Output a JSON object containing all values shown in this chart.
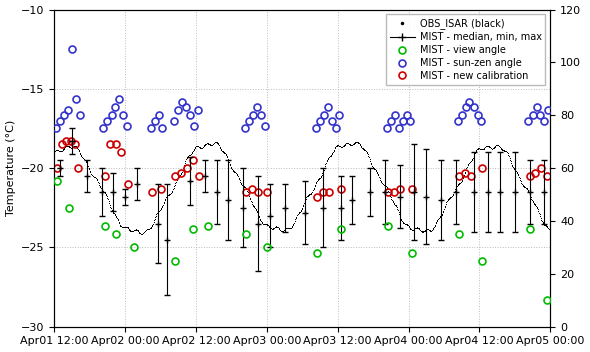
{
  "ylabel_left": "Temperature (°C)",
  "ylim_left": [
    -30,
    -10
  ],
  "ylim_right": [
    0,
    120
  ],
  "yticks_left": [
    -30,
    -25,
    -20,
    -15,
    -10
  ],
  "yticks_right": [
    0,
    20,
    40,
    60,
    80,
    100,
    120
  ],
  "bg_color": "#ffffff",
  "grid_color": "#bbbbbb",
  "legend_entries": [
    "OBS_ISAR (black)",
    "MIST - median, min, max",
    "MIST - view angle",
    "MIST - sun-zen angle",
    "MIST - new calibration"
  ],
  "view_angle_color": "#00bb00",
  "sun_zen_color": "#3333cc",
  "new_cal_color": "#cc0000",
  "xlim_hours": [
    12.0,
    96.0
  ],
  "xtick_hours": [
    12.0,
    24.0,
    36.0,
    48.0,
    60.0,
    72.0,
    84.0,
    96.0
  ],
  "xtick_labels": [
    "Apr01 12:00",
    "Apr02 00:00",
    "Apr02 12:00",
    "Apr03 00:00",
    "Apr03 12:00",
    "Apr04 00:00",
    "Apr04 12:00",
    "Apr05 00:00"
  ],
  "obs_isar_x_hours": [
    12.0,
    12.1,
    12.2,
    12.3,
    12.4,
    12.5,
    12.6,
    12.7,
    12.8,
    12.9,
    13.0,
    13.1,
    13.2,
    13.3,
    13.4,
    13.5,
    13.6,
    13.7,
    13.8,
    13.9,
    14.0,
    14.1,
    14.2,
    14.3,
    14.4,
    14.5,
    14.6,
    14.7,
    14.8,
    14.9,
    15.0,
    15.1,
    15.2,
    15.3,
    15.4,
    15.5,
    15.6,
    15.7,
    15.8,
    15.9,
    16.0,
    16.1,
    16.2,
    16.3,
    16.4,
    16.5,
    16.6,
    16.7,
    16.8,
    16.9,
    17.0,
    17.1,
    17.2,
    17.3,
    17.4,
    17.5,
    17.6,
    17.7,
    17.8,
    17.9,
    18.0,
    18.1,
    18.2,
    18.3,
    18.4,
    18.5,
    18.6,
    18.7,
    18.8,
    18.9,
    19.0,
    19.1,
    19.2,
    19.3,
    19.4,
    19.5,
    19.6,
    19.7,
    19.8,
    19.9,
    20.0,
    20.1,
    20.2,
    20.3,
    20.4,
    20.5,
    20.6,
    20.7,
    20.8,
    20.9,
    21.0,
    21.1,
    21.2,
    21.3,
    21.4,
    21.5,
    21.6,
    21.7,
    21.8,
    21.9,
    22.0,
    22.1,
    22.2,
    22.3,
    22.4,
    22.5,
    22.6,
    22.7,
    22.8,
    22.9,
    23.0,
    23.1,
    23.2,
    23.3,
    23.4,
    23.5,
    23.6,
    23.7,
    23.8,
    23.9,
    24.0,
    24.1,
    24.2,
    24.3,
    24.4,
    24.5,
    24.6,
    24.7,
    24.8,
    24.9,
    25.0,
    25.1,
    25.2,
    25.3,
    25.4,
    25.5,
    25.6,
    25.7,
    25.8,
    25.9,
    26.0,
    26.1,
    26.2,
    26.3,
    26.4,
    26.5,
    26.6,
    26.7,
    26.8,
    26.9,
    27.0,
    27.1,
    27.2,
    27.3,
    27.4,
    27.5,
    27.6,
    27.7,
    27.8,
    27.9,
    28.0,
    28.1,
    28.2,
    28.3,
    28.4,
    28.5,
    28.6,
    28.7,
    28.8,
    28.9,
    29.0,
    29.1,
    29.2,
    29.3,
    29.4,
    29.5,
    29.6,
    29.7,
    29.8,
    29.9,
    30.0,
    30.1,
    30.2,
    30.3,
    30.4,
    30.5,
    30.6,
    30.7,
    30.8,
    30.9,
    31.0,
    31.1,
    31.2,
    31.3,
    31.4,
    31.5,
    31.6,
    31.7,
    31.8,
    31.9,
    32.0,
    32.1,
    32.2,
    32.3,
    32.4,
    32.5,
    32.6,
    32.7,
    32.8,
    32.9,
    33.0,
    33.1,
    33.2,
    33.3,
    33.4,
    33.5,
    33.6,
    33.7,
    33.8,
    33.9,
    34.0,
    34.1,
    34.2,
    34.3,
    34.4,
    34.5,
    34.6,
    34.7,
    34.8,
    34.9,
    35.0,
    35.1,
    35.2,
    35.3,
    35.4,
    35.5,
    35.6,
    35.7,
    35.8,
    35.9,
    36.0,
    36.1,
    36.2,
    36.3,
    36.4,
    36.5,
    36.6,
    36.7,
    36.8,
    36.9,
    37.0,
    37.1,
    37.2,
    37.3,
    37.4,
    37.5,
    37.6,
    37.7,
    37.8,
    37.9,
    38.0,
    38.1,
    38.2,
    38.3,
    38.4,
    38.5,
    38.6,
    38.7,
    38.8,
    38.9,
    39.0,
    39.1,
    39.2,
    39.3,
    39.4,
    39.5,
    39.6,
    39.7,
    39.8,
    39.9,
    40.0,
    40.1,
    40.2,
    40.3,
    40.4,
    40.5,
    40.6,
    40.7,
    40.8,
    40.9,
    41.0,
    41.1,
    41.2,
    41.3,
    41.4,
    41.5,
    41.6,
    41.7,
    41.8,
    41.9,
    42.0,
    42.1,
    42.2,
    42.3,
    42.4,
    42.5,
    42.6,
    42.7,
    42.8,
    42.9,
    43.0,
    43.1,
    43.2,
    43.3,
    43.4,
    43.5,
    43.6,
    43.7,
    43.8,
    43.9,
    44.0,
    44.1,
    44.2,
    44.3,
    44.4,
    44.5,
    44.6,
    44.7,
    44.8,
    44.9,
    45.0,
    45.1,
    45.2,
    45.3,
    45.4,
    45.5,
    45.6,
    45.7,
    45.8,
    45.9,
    46.0,
    46.1,
    46.2,
    46.3,
    46.4,
    46.5,
    46.6,
    46.7,
    46.8,
    46.9,
    47.0,
    47.1,
    47.2,
    47.3,
    47.4,
    47.5,
    47.6,
    47.7,
    47.8,
    47.9,
    48.0,
    48.1,
    48.2,
    48.3,
    48.4,
    48.5,
    48.6,
    48.7,
    48.8,
    48.9,
    49.0,
    49.1,
    49.2,
    49.3,
    49.4,
    49.5,
    49.6,
    49.7,
    49.8,
    49.9,
    50.0,
    50.1,
    50.2,
    50.3,
    50.4,
    50.5,
    50.6,
    50.7,
    50.8,
    50.9,
    51.0,
    51.1,
    51.2,
    51.3,
    51.4,
    51.5,
    51.6,
    51.7,
    51.8,
    51.9,
    52.0,
    52.1,
    52.2,
    52.3,
    52.4,
    52.5,
    52.6,
    52.7,
    52.8,
    52.9,
    53.0,
    53.1,
    53.2,
    53.3,
    53.4,
    53.5,
    53.6,
    53.7,
    53.8,
    53.9,
    54.0,
    54.1,
    54.2,
    54.3,
    54.4,
    54.5,
    54.6,
    54.7,
    54.8,
    54.9,
    55.0,
    55.1,
    55.2,
    55.3,
    55.4,
    55.5,
    55.6,
    55.7,
    55.8,
    55.9,
    56.0,
    56.1,
    56.2,
    56.3,
    56.4,
    56.5,
    56.6,
    56.7,
    56.8,
    56.9,
    57.0,
    57.1,
    57.2,
    57.3,
    57.4,
    57.5,
    57.6,
    57.7,
    57.8,
    57.9,
    58.0,
    58.1,
    58.2,
    58.3,
    58.4,
    58.5,
    58.6,
    58.7,
    58.8,
    58.9,
    59.0,
    59.1,
    59.2,
    59.3,
    59.4,
    59.5,
    59.6,
    59.7,
    59.8,
    59.9,
    60.0,
    60.1,
    60.2,
    60.3,
    60.4,
    60.5,
    60.6,
    60.7,
    60.8,
    60.9,
    61.0,
    61.1,
    61.2,
    61.3,
    61.4,
    61.5,
    61.6,
    61.7,
    61.8,
    61.9,
    62.0,
    62.1,
    62.2,
    62.3,
    62.4,
    62.5,
    62.6,
    62.7,
    62.8,
    62.9,
    63.0,
    63.1,
    63.2,
    63.3,
    63.4,
    63.5,
    63.6,
    63.7,
    63.8,
    63.9,
    64.0,
    64.1,
    64.2,
    64.3,
    64.4,
    64.5,
    64.6,
    64.7,
    64.8,
    64.9,
    65.0,
    65.1,
    65.2,
    65.3,
    65.4,
    65.5,
    65.6,
    65.7,
    65.8,
    65.9,
    66.0,
    66.1,
    66.2,
    66.3,
    66.4,
    66.5,
    66.6,
    66.7,
    66.8,
    66.9,
    67.0,
    67.1,
    67.2,
    67.3,
    67.4,
    67.5,
    67.6,
    67.7,
    67.8,
    67.9,
    68.0,
    68.1,
    68.2,
    68.3,
    68.4,
    68.5,
    68.6,
    68.7,
    68.8,
    68.9,
    69.0,
    69.1,
    69.2,
    69.3,
    69.4,
    69.5,
    69.6,
    69.7,
    69.8,
    69.9,
    70.0,
    70.1,
    70.2,
    70.3,
    70.4,
    70.5,
    70.6,
    70.7,
    70.8,
    70.9,
    71.0,
    71.1,
    71.2,
    71.3,
    71.4,
    71.5,
    71.6,
    71.7,
    71.8,
    71.9,
    72.0,
    72.1,
    72.2,
    72.3,
    72.4,
    72.5,
    72.6,
    72.7,
    72.8,
    72.9,
    73.0,
    73.1,
    73.2,
    73.3,
    73.4,
    73.5,
    73.6,
    73.7,
    73.8,
    73.9,
    74.0,
    74.1,
    74.2,
    74.3,
    74.4,
    74.5,
    74.6,
    74.7,
    74.8,
    74.9,
    75.0,
    75.1,
    75.2,
    75.3,
    75.4,
    75.5,
    75.6,
    75.7,
    75.8,
    75.9,
    76.0,
    76.1,
    76.2,
    76.3,
    76.4,
    76.5,
    76.6,
    76.7,
    76.8,
    76.9,
    77.0,
    77.1,
    77.2,
    77.3,
    77.4,
    77.5,
    77.6,
    77.7,
    77.8,
    77.9,
    78.0,
    78.1,
    78.2,
    78.3,
    78.4,
    78.5,
    78.6,
    78.7,
    78.8,
    78.9,
    79.0,
    79.1,
    79.2,
    79.3,
    79.4,
    79.5,
    79.6,
    79.7,
    79.8,
    79.9,
    80.0,
    80.1,
    80.2,
    80.3,
    80.4,
    80.5,
    80.6,
    80.7,
    80.8,
    80.9,
    81.0,
    81.1,
    81.2,
    81.3,
    81.4,
    81.5,
    81.6,
    81.7,
    81.8,
    81.9,
    82.0,
    82.1,
    82.2,
    82.3,
    82.4,
    82.5,
    82.6,
    82.7,
    82.8,
    82.9,
    83.0,
    83.1,
    83.2,
    83.3,
    83.4,
    83.5,
    83.6,
    83.7,
    83.8,
    83.9,
    84.0,
    84.1,
    84.2,
    84.3,
    84.4,
    84.5,
    84.6,
    84.7,
    84.8,
    84.9,
    85.0,
    85.1,
    85.2,
    85.3,
    85.4,
    85.5,
    85.6,
    85.7,
    85.8,
    85.9,
    86.0,
    86.1,
    86.2,
    86.3,
    86.4,
    86.5,
    86.6,
    86.7,
    86.8,
    86.9,
    87.0,
    87.1,
    87.2,
    87.3,
    87.4,
    87.5,
    87.6,
    87.7,
    87.8,
    87.9,
    88.0,
    88.1,
    88.2,
    88.3,
    88.4,
    88.5,
    88.6,
    88.7,
    88.8,
    88.9,
    89.0,
    89.1,
    89.2,
    89.3,
    89.4,
    89.5,
    89.6,
    89.7,
    89.8,
    89.9,
    90.0,
    90.1,
    90.2,
    90.3,
    90.4,
    90.5,
    90.6,
    90.7,
    90.8,
    90.9,
    91.0,
    91.1,
    91.2,
    91.3,
    91.4,
    91.5,
    91.6,
    91.7,
    91.8,
    91.9,
    92.0,
    92.1,
    92.2,
    92.3,
    92.4,
    92.5,
    92.6,
    92.7,
    92.8,
    92.9,
    93.0,
    93.1,
    93.2,
    93.3,
    93.4,
    93.5,
    93.6,
    93.7,
    93.8,
    93.9,
    94.0,
    94.1,
    94.2,
    94.3,
    94.4,
    94.5,
    94.6,
    94.7,
    94.8,
    94.9,
    95.0,
    95.1,
    95.2,
    95.3,
    95.4,
    95.5,
    95.6,
    95.7,
    95.8,
    95.9,
    96.0
  ],
  "mist_median_x_hours": [
    13.0,
    15.0,
    17.5,
    20.0,
    22.0,
    24.0,
    26.0,
    29.5,
    31.0,
    35.0,
    37.5,
    39.5,
    41.5,
    44.0,
    46.5,
    48.5,
    51.0,
    54.5,
    57.5,
    60.5,
    62.5,
    65.5,
    68.0,
    70.5,
    73.0,
    75.0,
    77.5,
    80.0,
    83.0,
    85.5,
    87.5,
    90.0,
    92.5,
    95.0
  ],
  "mist_median_y": [
    -20.0,
    -18.3,
    -20.5,
    -21.5,
    -21.5,
    -21.8,
    -21.0,
    -23.5,
    -24.5,
    -20.8,
    -20.5,
    -21.5,
    -22.0,
    -22.5,
    -23.5,
    -23.0,
    -22.5,
    -22.8,
    -22.5,
    -22.5,
    -22.0,
    -21.5,
    -21.5,
    -21.8,
    -21.5,
    -21.8,
    -22.0,
    -21.5,
    -21.5,
    -21.5,
    -21.5,
    -21.5,
    -21.5,
    -21.5
  ],
  "mist_err_low": [
    0.5,
    0.8,
    1.0,
    1.5,
    1.2,
    0.5,
    1.0,
    2.5,
    3.5,
    1.5,
    1.0,
    2.0,
    2.5,
    2.5,
    3.0,
    2.0,
    1.5,
    2.0,
    2.5,
    2.0,
    1.5,
    1.5,
    2.0,
    2.0,
    3.0,
    3.0,
    2.5,
    2.0,
    2.5,
    2.5,
    2.5,
    2.5,
    2.0,
    2.0
  ],
  "mist_err_high": [
    0.5,
    0.8,
    1.0,
    1.5,
    1.2,
    0.5,
    1.0,
    2.5,
    3.5,
    1.5,
    1.0,
    2.0,
    2.5,
    2.5,
    3.0,
    2.0,
    1.5,
    2.0,
    2.5,
    2.0,
    1.5,
    1.5,
    2.0,
    2.0,
    3.0,
    3.0,
    2.5,
    2.0,
    2.5,
    2.5,
    2.5,
    2.5,
    2.0,
    2.0
  ],
  "view_angle_x_hours": [
    12.5,
    14.5,
    20.5,
    22.5,
    25.5,
    32.5,
    35.5,
    38.0,
    44.5,
    48.0,
    56.5,
    60.5,
    68.5,
    72.5,
    80.5,
    84.5,
    92.5,
    95.5
  ],
  "view_angle_deg": [
    55,
    45,
    38,
    35,
    30,
    25,
    37,
    38,
    35,
    30,
    28,
    37,
    38,
    28,
    35,
    25,
    37,
    10
  ],
  "sun_zen_x_hours": [
    12.3,
    13.0,
    13.7,
    14.3,
    15.0,
    15.7,
    16.3,
    20.3,
    21.0,
    21.7,
    22.3,
    23.0,
    23.7,
    24.3,
    28.3,
    29.0,
    29.7,
    30.3,
    32.3,
    33.0,
    33.7,
    34.3,
    35.0,
    35.7,
    36.3,
    44.3,
    45.0,
    45.7,
    46.3,
    47.0,
    47.7,
    56.3,
    57.0,
    57.7,
    58.3,
    59.0,
    59.7,
    60.3,
    68.3,
    69.0,
    69.7,
    70.3,
    71.0,
    71.7,
    72.3,
    80.3,
    81.0,
    81.7,
    82.3,
    83.0,
    83.7,
    84.3,
    92.3,
    93.0,
    93.7,
    94.3,
    95.0,
    95.7
  ],
  "sun_zen_deg": [
    75,
    78,
    80,
    82,
    105,
    86,
    80,
    75,
    78,
    80,
    83,
    86,
    80,
    76,
    75,
    78,
    80,
    75,
    78,
    82,
    85,
    83,
    80,
    76,
    82,
    75,
    78,
    80,
    83,
    80,
    76,
    75,
    78,
    80,
    83,
    78,
    75,
    80,
    75,
    78,
    80,
    75,
    78,
    80,
    78,
    78,
    80,
    83,
    85,
    83,
    80,
    78,
    78,
    80,
    83,
    80,
    78,
    82
  ],
  "new_cal_x_hours": [
    12.5,
    13.3,
    14.0,
    14.8,
    15.5,
    16.0,
    20.5,
    21.5,
    22.5,
    23.3,
    24.5,
    28.5,
    30.0,
    32.5,
    33.5,
    34.5,
    35.5,
    36.5,
    44.5,
    45.5,
    46.5,
    48.0,
    56.5,
    57.5,
    58.5,
    60.5,
    68.5,
    69.5,
    70.5,
    72.5,
    80.5,
    81.5,
    82.5,
    84.5,
    92.5,
    93.5,
    94.5,
    95.5
  ],
  "new_cal_y": [
    -20.0,
    -18.5,
    -18.3,
    -18.3,
    -18.5,
    -20.0,
    -20.5,
    -18.5,
    -18.5,
    -19.0,
    -21.0,
    -21.5,
    -21.3,
    -20.5,
    -20.3,
    -20.0,
    -19.5,
    -20.5,
    -21.5,
    -21.3,
    -21.5,
    -21.5,
    -21.8,
    -21.5,
    -21.5,
    -21.3,
    -21.5,
    -21.5,
    -21.3,
    -21.3,
    -20.5,
    -20.3,
    -20.5,
    -20.0,
    -20.5,
    -20.3,
    -20.0,
    -20.5
  ]
}
